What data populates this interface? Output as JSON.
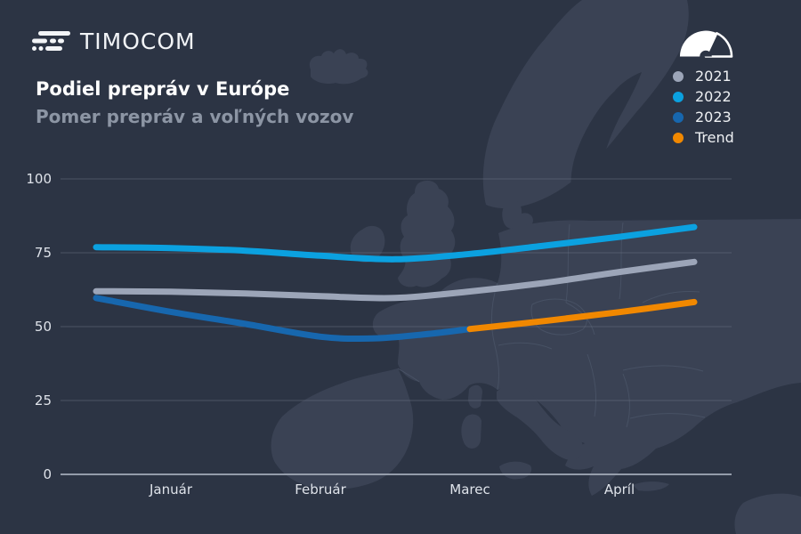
{
  "brand": {
    "name": "TIMOCOM"
  },
  "header": {
    "title": "Podiel prepráv v Európe",
    "subtitle": "Pomer prepráv a voľných vozov"
  },
  "legend": {
    "items": [
      {
        "label": "2021",
        "color": "#9ca5b8"
      },
      {
        "label": "2022",
        "color": "#0ba1e0"
      },
      {
        "label": "2023",
        "color": "#1767ae"
      },
      {
        "label": "Trend",
        "color": "#f18800"
      }
    ]
  },
  "chart_data": {
    "type": "line",
    "title": "Podiel prepráv v Európe",
    "subtitle": "Pomer prepráv a voľných vozov",
    "categories": [
      "Január",
      "Február",
      "Marec",
      "Apríl"
    ],
    "x_note": "x in month units: 0 = start of Január, 4 = end of Apríl; month labels centered at 0.5, 1.5, 2.5, 3.5",
    "ylim": [
      0,
      100
    ],
    "yticks": [
      0,
      25,
      50,
      75,
      100
    ],
    "grid": "horizontal",
    "legend_position": "top-right",
    "series": [
      {
        "name": "2021",
        "color": "#9ca5b8",
        "points": [
          [
            0,
            62.0
          ],
          [
            0.5,
            61.8
          ],
          [
            1,
            61.2
          ],
          [
            1.5,
            60.3
          ],
          [
            2,
            59.7
          ],
          [
            2.5,
            61.9
          ],
          [
            3,
            64.8
          ],
          [
            3.5,
            68.5
          ],
          [
            4,
            71.9
          ]
        ]
      },
      {
        "name": "2022",
        "color": "#0ba1e0",
        "points": [
          [
            0,
            76.9
          ],
          [
            0.5,
            76.6
          ],
          [
            1,
            75.7
          ],
          [
            1.5,
            74.0
          ],
          [
            2,
            72.8
          ],
          [
            2.5,
            74.6
          ],
          [
            3,
            77.4
          ],
          [
            3.5,
            80.4
          ],
          [
            4,
            83.7
          ]
        ]
      },
      {
        "name": "2023",
        "color": "#1767ae",
        "points": [
          [
            0,
            59.7
          ],
          [
            0.5,
            55.0
          ],
          [
            1,
            50.9
          ],
          [
            1.5,
            46.6
          ],
          [
            1.85,
            46.0
          ],
          [
            2.2,
            47.4
          ],
          [
            2.5,
            49.2
          ]
        ]
      },
      {
        "name": "Trend",
        "color": "#f18800",
        "points": [
          [
            2.5,
            49.2
          ],
          [
            3,
            51.9
          ],
          [
            3.5,
            54.9
          ],
          [
            4,
            58.3
          ]
        ]
      }
    ]
  },
  "colors": {
    "background": "#2c3444",
    "map_land": "#3a4254",
    "map_border": "#4b5568",
    "grid_line": "#69707f",
    "zero_line": "#9aa2b0",
    "tick_text": "#dfe3ea",
    "title": "#ffffff",
    "subtitle": "#8c95a4"
  }
}
